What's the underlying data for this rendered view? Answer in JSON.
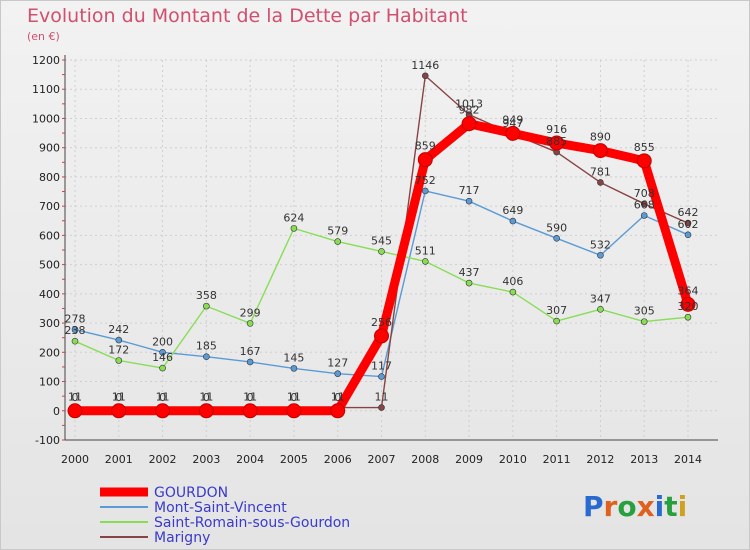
{
  "chart_data": {
    "type": "line",
    "title": "Evolution du Montant de la Dette par Habitant",
    "ylabel": "(en €)",
    "x": [
      2000,
      2001,
      2002,
      2003,
      2004,
      2005,
      2006,
      2007,
      2008,
      2009,
      2010,
      2011,
      2012,
      2013,
      2014
    ],
    "yticks": [
      -100,
      0,
      100,
      200,
      300,
      400,
      500,
      600,
      700,
      800,
      900,
      1000,
      1100,
      1200
    ],
    "ylim": [
      -100,
      1200
    ],
    "grid": true,
    "legend_position": "bottom-left",
    "series": [
      {
        "name": "GOURDON",
        "color": "#ff0000",
        "values": [
          0,
          0,
          0,
          0,
          0,
          0,
          0,
          256,
          859,
          982,
          949,
          916,
          890,
          855,
          364
        ]
      },
      {
        "name": "Mont-Saint-Vincent",
        "color": "#5b9bd5",
        "values": [
          278,
          242,
          200,
          185,
          167,
          145,
          127,
          117,
          752,
          717,
          649,
          590,
          532,
          668,
          602
        ]
      },
      {
        "name": "Saint-Romain-sous-Gourdon",
        "color": "#88dd55",
        "values": [
          238,
          172,
          146,
          358,
          299,
          624,
          579,
          545,
          511,
          437,
          406,
          307,
          347,
          305,
          320
        ]
      },
      {
        "name": "Marigny",
        "color": "#884444",
        "values": [
          11,
          11,
          11,
          11,
          11,
          11,
          11,
          11,
          1146,
          1013,
          947,
          885,
          781,
          708,
          642
        ]
      }
    ]
  },
  "logo": {
    "text": "Proxiti"
  }
}
